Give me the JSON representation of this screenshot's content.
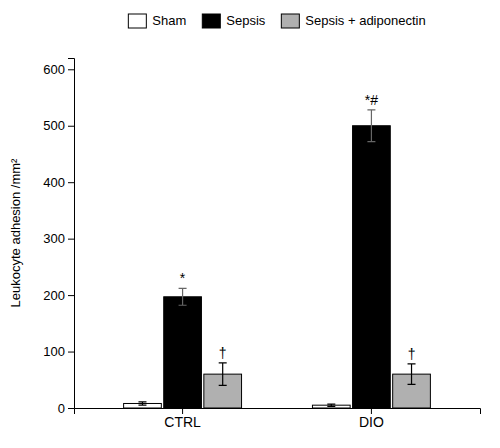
{
  "chart_data": {
    "type": "bar",
    "categories": [
      "CTRL",
      "DIO"
    ],
    "series": [
      {
        "name": "Sham",
        "color": "white",
        "values": [
          8,
          5
        ],
        "errors": [
          3,
          2
        ]
      },
      {
        "name": "Sepsis",
        "color": "black",
        "values": [
          197,
          500
        ],
        "errors": [
          15,
          28
        ]
      },
      {
        "name": "Sepsis + adiponectin",
        "color": "#b0b0b0",
        "values": [
          60,
          60
        ],
        "errors": [
          20,
          18
        ]
      }
    ],
    "ylabel": "Leukocyte adhesion /mm²",
    "ylim": [
      0,
      620
    ],
    "yticks": [
      0,
      100,
      200,
      300,
      400,
      500,
      600
    ],
    "annotations": [
      {
        "text": "*",
        "category": "CTRL",
        "series": "Sepsis"
      },
      {
        "text": "*#",
        "category": "DIO",
        "series": "Sepsis"
      },
      {
        "text": "†",
        "category": "CTRL",
        "series": "Sepsis + adiponectin"
      },
      {
        "text": "†",
        "category": "DIO",
        "series": "Sepsis + adiponectin"
      }
    ],
    "legend": "top",
    "grid": false
  }
}
